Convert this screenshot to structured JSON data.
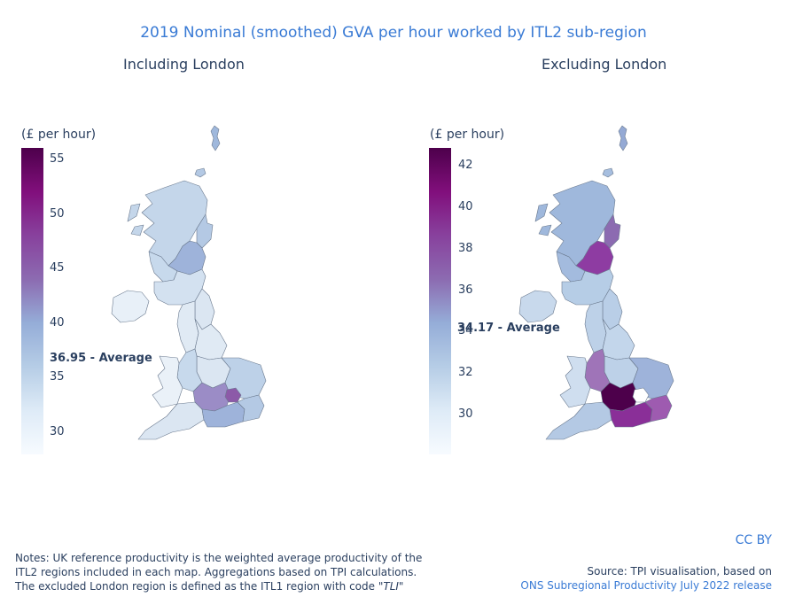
{
  "title": "2019 Nominal (smoothed) GVA per hour worked by ITL2 sub-region",
  "maps": [
    {
      "subtitle": "Including London",
      "unit_label": "(£ per hour)",
      "colorscale": [
        "#f7fbff",
        "#deebf7",
        "#b6cde6",
        "#95add8",
        "#8c6bb1",
        "#88419d",
        "#810f7c",
        "#4d004b"
      ],
      "range": [
        28.1,
        56.8
      ],
      "ticks": [
        "55",
        "50",
        "45",
        "40",
        "35",
        "30"
      ],
      "average_label": "36.95 - Average",
      "regions": [
        {
          "name": "Shetland",
          "color": "#9fb8dc"
        },
        {
          "name": "Orkney",
          "color": "#b4c9e4"
        },
        {
          "name": "Highlands and Islands",
          "color": "#c4d6ea"
        },
        {
          "name": "North Eastern Scotland",
          "color": "#b4c9e4"
        },
        {
          "name": "Eastern Scotland",
          "color": "#9eb3da"
        },
        {
          "name": "West Central Scotland",
          "color": "#c7d9ec"
        },
        {
          "name": "Southern Scotland",
          "color": "#d3e1f0"
        },
        {
          "name": "Northern Ireland",
          "color": "#e8f0f8"
        },
        {
          "name": "North East",
          "color": "#dbe6f2"
        },
        {
          "name": "North West",
          "color": "#e0eaf4"
        },
        {
          "name": "Yorkshire and The Humber",
          "color": "#e0eaf4"
        },
        {
          "name": "East Midlands",
          "color": "#dbe6f2"
        },
        {
          "name": "West Midlands",
          "color": "#c7d9ec"
        },
        {
          "name": "East of England",
          "color": "#bdd1e8"
        },
        {
          "name": "Wales",
          "color": "#eaf1f8"
        },
        {
          "name": "South West",
          "color": "#dbe6f2"
        },
        {
          "name": "Thames Valley",
          "color": "#9b8cc6"
        },
        {
          "name": "Surrey and Sussex",
          "color": "#9eb3da"
        },
        {
          "name": "Kent",
          "color": "#b4c9e4"
        },
        {
          "name": "London",
          "color": "#8c5aa8"
        }
      ]
    },
    {
      "subtitle": "Excluding London",
      "unit_label": "(£ per hour)",
      "colorscale": [
        "#f7fbff",
        "#deebf7",
        "#b6cde6",
        "#95add8",
        "#8c6bb1",
        "#88419d",
        "#810f7c",
        "#4d004b"
      ],
      "range": [
        28.1,
        43.0
      ],
      "ticks": [
        "42",
        "40",
        "38",
        "36",
        "34",
        "32",
        "30"
      ],
      "average_label": "34.17 - Average",
      "regions": [
        {
          "name": "Shetland",
          "color": "#94a9d4"
        },
        {
          "name": "Orkney",
          "color": "#a6bedf"
        },
        {
          "name": "Highlands and Islands",
          "color": "#9fb8dc"
        },
        {
          "name": "North Eastern Scotland",
          "color": "#8c6bb1"
        },
        {
          "name": "Eastern Scotland",
          "color": "#8e3ca2"
        },
        {
          "name": "West Central Scotland",
          "color": "#a3bbde"
        },
        {
          "name": "Southern Scotland",
          "color": "#b6cde6"
        },
        {
          "name": "Northern Ireland",
          "color": "#c8d9ec"
        },
        {
          "name": "North East",
          "color": "#b9cee7"
        },
        {
          "name": "North West",
          "color": "#bdd1e8"
        },
        {
          "name": "Yorkshire and The Humber",
          "color": "#c3d6eb"
        },
        {
          "name": "East Midlands",
          "color": "#bdd1e8"
        },
        {
          "name": "West Midlands",
          "color": "#9f74b8"
        },
        {
          "name": "East of England",
          "color": "#9eb3da"
        },
        {
          "name": "Wales",
          "color": "#cfdeef"
        },
        {
          "name": "South West",
          "color": "#b4c9e4"
        },
        {
          "name": "Thames Valley",
          "color": "#4d004b"
        },
        {
          "name": "Surrey and Sussex",
          "color": "#8a2f98"
        },
        {
          "name": "Kent",
          "color": "#9e5bb0"
        },
        {
          "name": "London",
          "color": "#ffffff"
        }
      ]
    }
  ],
  "notes": {
    "line1": "Notes: UK reference productivity is the weighted average productivity of the",
    "line2": "ITL2 regions included in each map. Aggregations based on TPI calculations.",
    "line3_prefix": "The excluded London region is defined as the ITL1 region with code ",
    "line3_code": "\"TLI\""
  },
  "license": "CC BY",
  "source": {
    "line1": "Source: TPI visualisation, based on",
    "link": "ONS Subregional Productivity July 2022 release"
  }
}
